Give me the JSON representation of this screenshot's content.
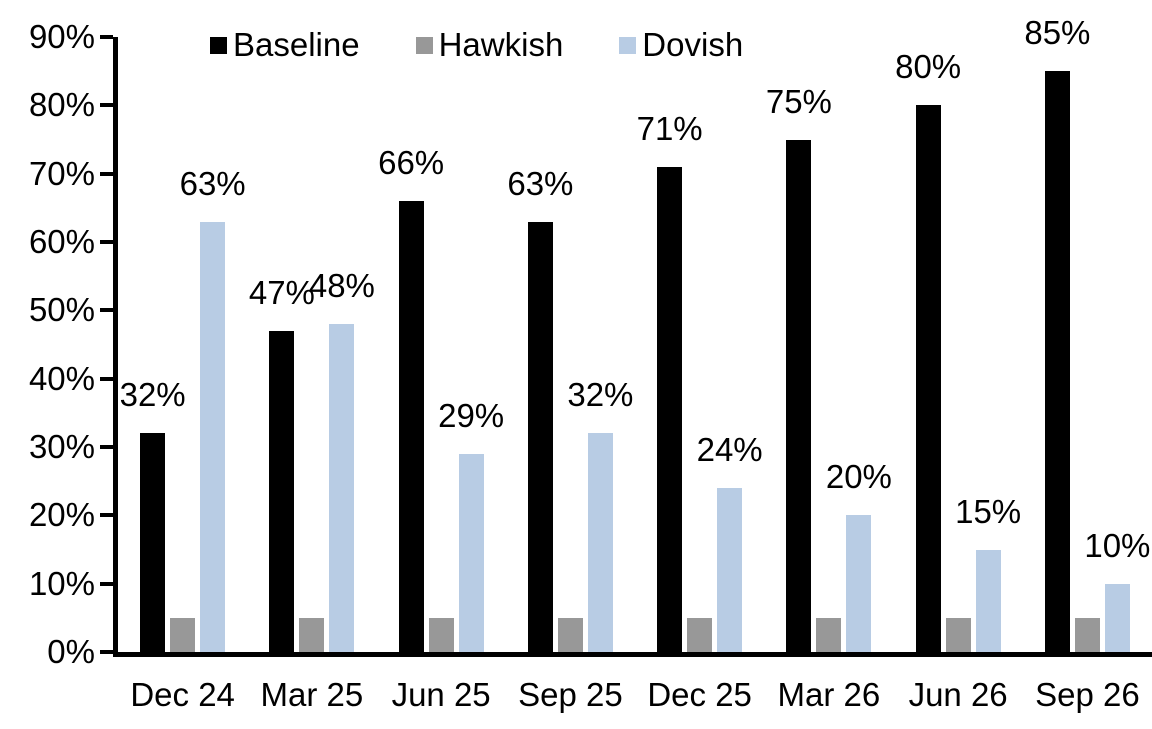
{
  "chart_data": {
    "type": "bar",
    "title": "",
    "xlabel": "",
    "ylabel": "",
    "categories": [
      "Dec 24",
      "Mar 25",
      "Jun 25",
      "Sep 25",
      "Dec 25",
      "Mar 26",
      "Jun 26",
      "Sep 26"
    ],
    "series": [
      {
        "name": "Baseline",
        "color": "#000000",
        "values": [
          32,
          47,
          66,
          63,
          71,
          75,
          80,
          85
        ],
        "data_labels": [
          "32%",
          "47%",
          "66%",
          "63%",
          "71%",
          "75%",
          "80%",
          "85%"
        ]
      },
      {
        "name": "Hawkish",
        "color": "#989898",
        "values": [
          5,
          5,
          5,
          5,
          5,
          5,
          5,
          5
        ],
        "data_labels": [
          "",
          "",
          "",
          "",
          "",
          "",
          "",
          ""
        ]
      },
      {
        "name": "Dovish",
        "color": "#b8cce4",
        "values": [
          63,
          48,
          29,
          32,
          24,
          20,
          15,
          10
        ],
        "data_labels": [
          "63%",
          "48%",
          "29%",
          "32%",
          "24%",
          "20%",
          "15%",
          "10%"
        ]
      }
    ],
    "ylim": [
      0,
      90
    ],
    "ytick_step": 10,
    "ytick_labels": [
      "0%",
      "10%",
      "20%",
      "30%",
      "40%",
      "50%",
      "60%",
      "70%",
      "80%",
      "90%"
    ],
    "legend": {
      "position": "top",
      "entries": [
        "Baseline",
        "Hawkish",
        "Dovish"
      ]
    },
    "grid": false,
    "axis_color": "#000000",
    "background_color": "#ffffff"
  }
}
